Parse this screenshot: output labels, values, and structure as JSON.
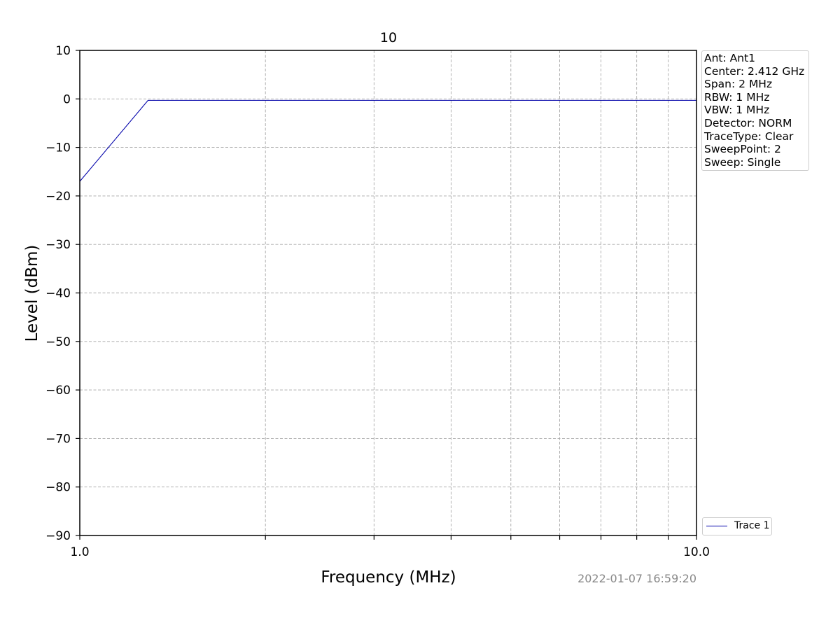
{
  "chart_data": {
    "type": "line",
    "title": "10",
    "xlabel": "Frequency (MHz)",
    "ylabel": "Level (dBm)",
    "x_scale": "log",
    "xlim": [
      1.0,
      10.0
    ],
    "ylim": [
      -90,
      10
    ],
    "x_tick_labels": [
      "1.0",
      "10.0"
    ],
    "y_ticks": [
      10,
      0,
      -10,
      -20,
      -30,
      -40,
      -50,
      -60,
      -70,
      -80,
      -90
    ],
    "y_tick_labels": [
      "10",
      "0",
      "−10",
      "−20",
      "−30",
      "−40",
      "−50",
      "−60",
      "−70",
      "−80",
      "−90"
    ],
    "grid": true,
    "series": [
      {
        "name": "Trace 1",
        "color": "#0000aa",
        "x": [
          1.0,
          1.29,
          10.0
        ],
        "y": [
          -17,
          -0.3,
          -0.3
        ]
      }
    ],
    "legend_position": "lower-right-outside",
    "timestamp": "2022-01-07 16:59:20"
  },
  "info_panel": {
    "lines": [
      "Ant: Ant1",
      "Center: 2.412 GHz",
      "Span: 2 MHz",
      "RBW: 1 MHz",
      "VBW: 1 MHz",
      "Detector: NORM",
      "TraceType: Clear",
      "SweepPoint: 2",
      "Sweep: Single"
    ]
  },
  "colors": {
    "trace": "#0000aa",
    "grid": "#a8a8a8",
    "timestamp": "#888888",
    "frame": "#000000"
  }
}
